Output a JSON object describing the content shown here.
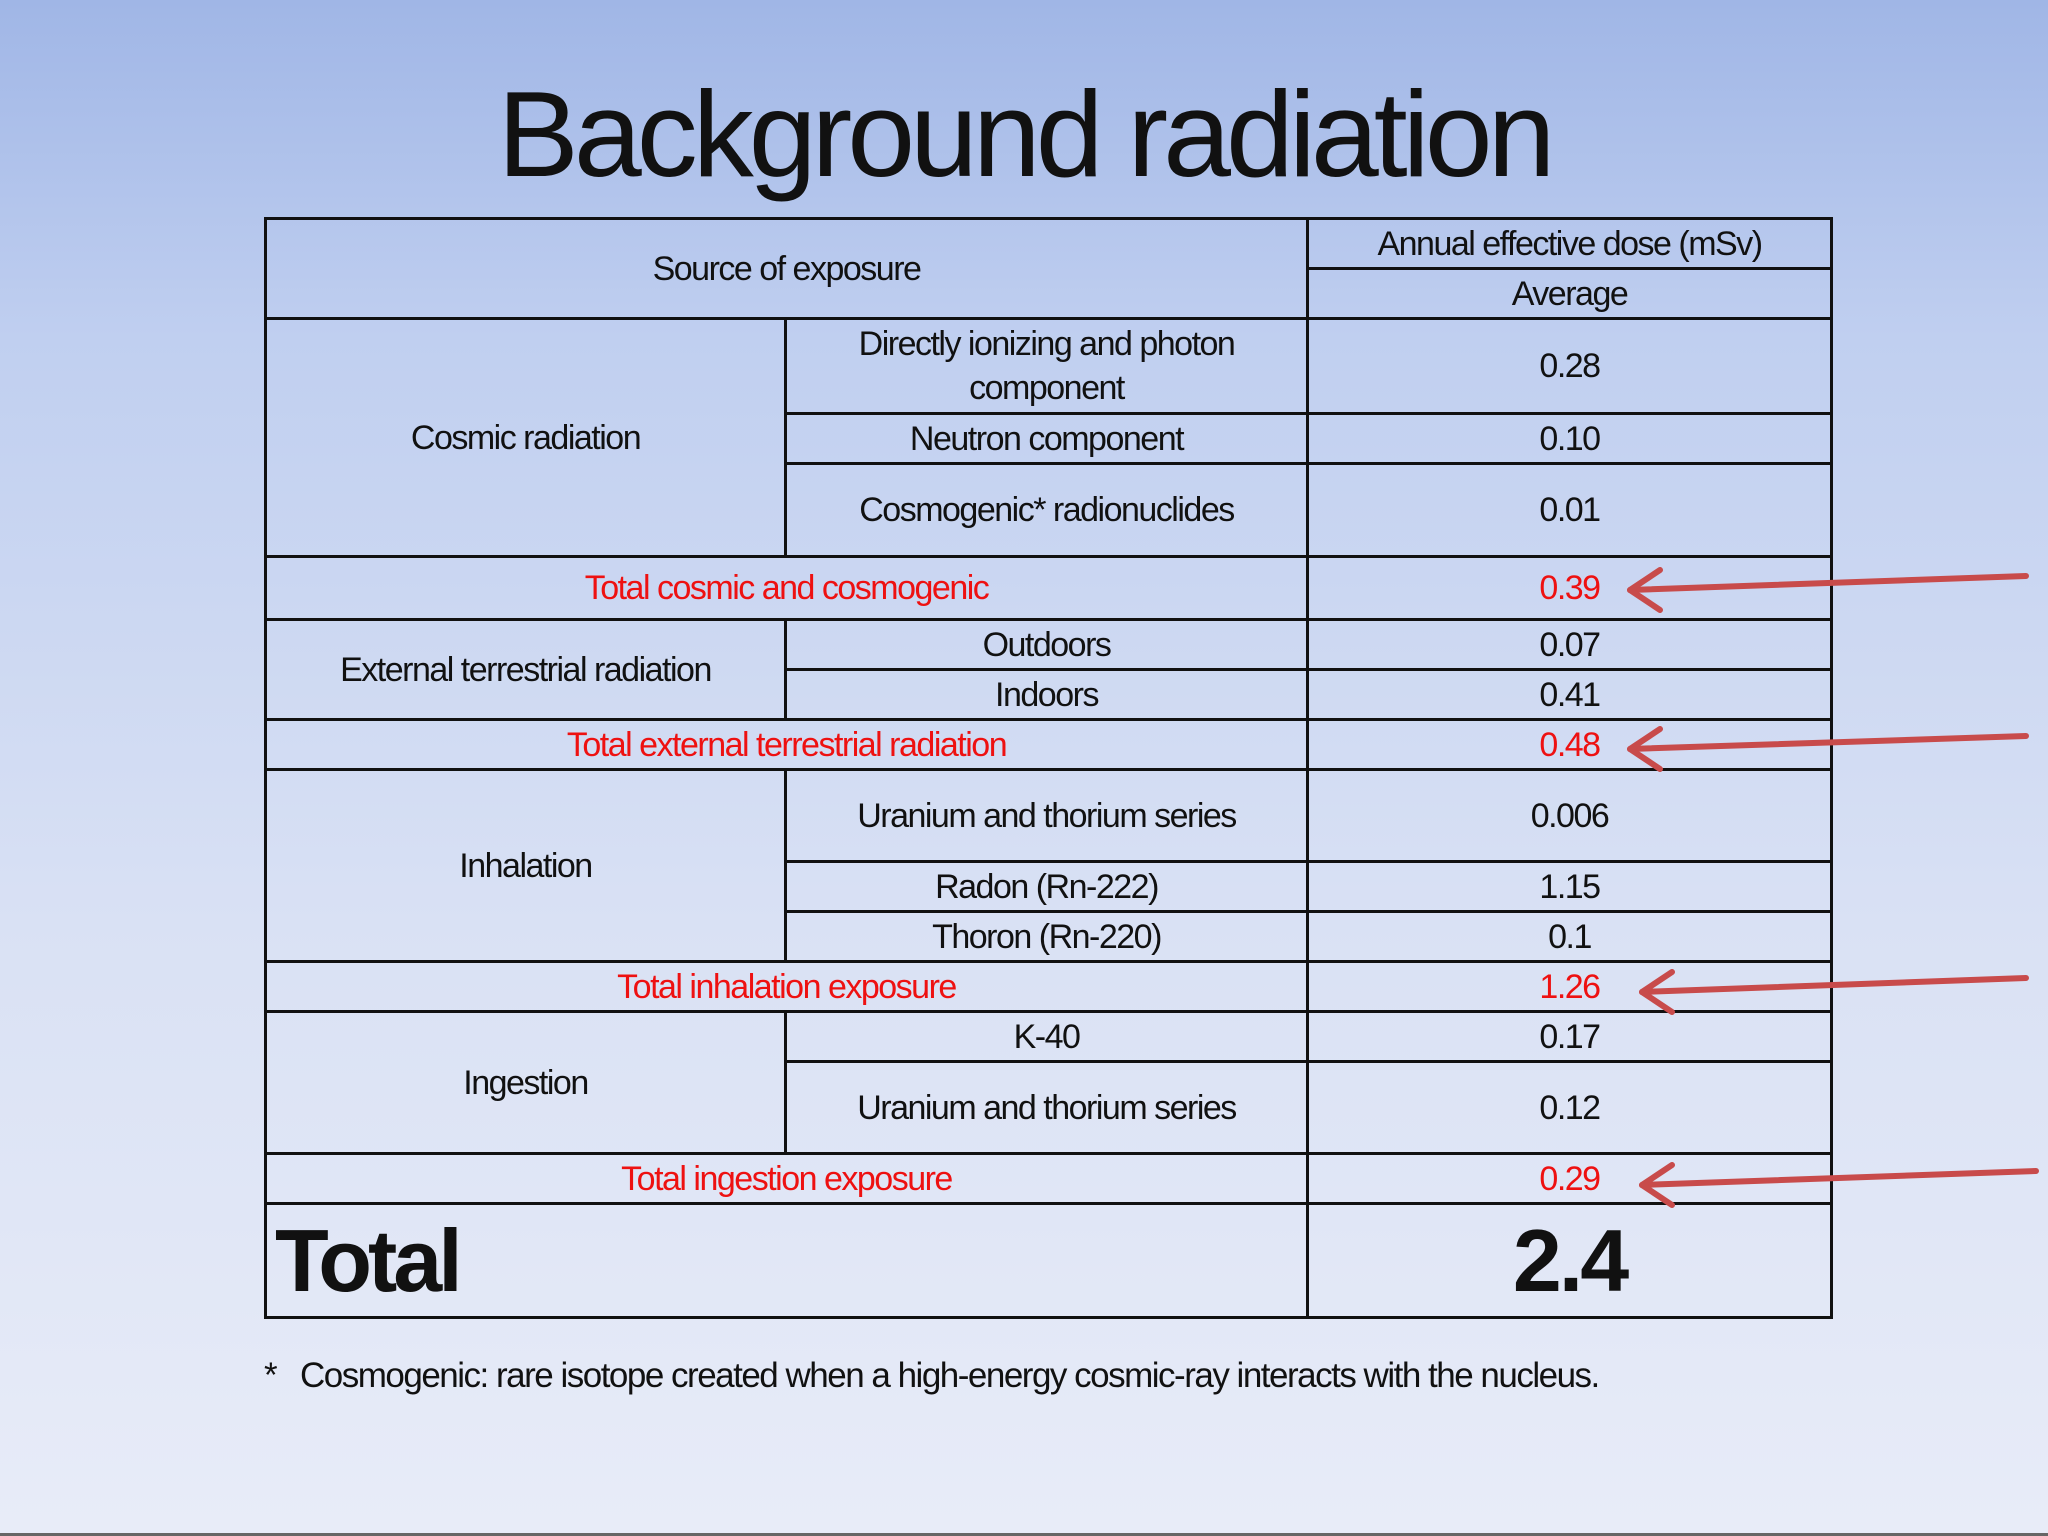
{
  "title": "Background radiation",
  "header": {
    "source": "Source of exposure",
    "dose": "Annual effective dose (mSv)",
    "average": "Average"
  },
  "cosmic": {
    "group": "Cosmic radiation",
    "rows": [
      {
        "label": "Directly ionizing and photon component",
        "value": "0.28"
      },
      {
        "label": "Neutron component",
        "value": "0.10"
      },
      {
        "label": "Cosmogenic* radionuclides",
        "value": "0.01"
      }
    ],
    "total": {
      "label": "Total cosmic and cosmogenic",
      "value": "0.39"
    }
  },
  "external": {
    "group": "External terrestrial radiation",
    "rows": [
      {
        "label": "Outdoors",
        "value": "0.07"
      },
      {
        "label": "Indoors",
        "value": "0.41"
      }
    ],
    "total": {
      "label": "Total external terrestrial radiation",
      "value": "0.48"
    }
  },
  "inhalation": {
    "group": "Inhalation",
    "rows": [
      {
        "label": "Uranium and thorium series",
        "value": "0.006"
      },
      {
        "label": "Radon (Rn-222)",
        "value": "1.15"
      },
      {
        "label": "Thoron (Rn-220)",
        "value": "0.1"
      }
    ],
    "total": {
      "label": "Total inhalation exposure",
      "value": "1.26"
    }
  },
  "ingestion": {
    "group": "Ingestion",
    "rows": [
      {
        "label": "K-40",
        "value": "0.17"
      },
      {
        "label": "Uranium and thorium series",
        "value": "0.12"
      }
    ],
    "total": {
      "label": "Total ingestion exposure",
      "value": "0.29"
    }
  },
  "grand_total": {
    "label": "Total",
    "value": "2.4"
  },
  "footnote": {
    "marker": "*",
    "text": "Cosmogenic: rare isotope created when a high-energy cosmic-ray interacts with the nucleus."
  },
  "colors": {
    "highlight": "#ee1111",
    "arrow": "#c84b4b"
  }
}
